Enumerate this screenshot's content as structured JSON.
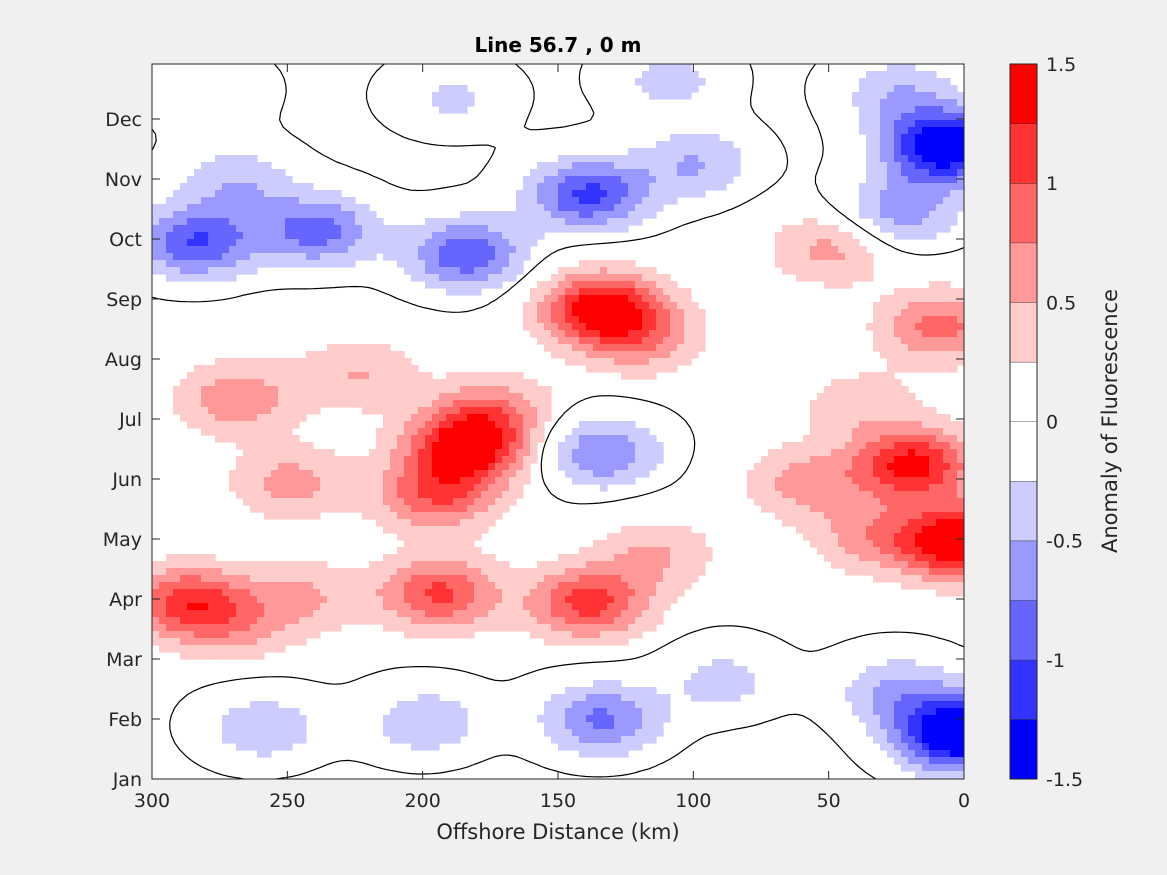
{
  "chart_data": {
    "type": "heatmap",
    "title": "Line 56.7 , 0 m",
    "xlabel": "Offshore Distance (km)",
    "ylabel": "",
    "xlim": [
      300,
      0
    ],
    "x_reversed": true,
    "x_ticks": [
      "300",
      "250",
      "200",
      "150",
      "100",
      "50",
      "0"
    ],
    "y_ticks": [
      "Jan",
      "Feb",
      "Mar",
      "Apr",
      "May",
      "Jun",
      "Jul",
      "Aug",
      "Sep",
      "Oct",
      "Nov",
      "Dec"
    ],
    "colorbar": {
      "label": "Anomaly of Fluorescence",
      "range": [
        -1.5,
        1.5
      ],
      "tick_labels": [
        "1.5",
        "1",
        "0.5",
        "0",
        "-0.5",
        "-1",
        "-1.5"
      ],
      "levels": [
        -1.5,
        -1.25,
        -1.0,
        -0.75,
        -0.5,
        -0.25,
        0,
        0.25,
        0.5,
        0.75,
        1.0,
        1.25,
        1.5
      ],
      "colors": [
        "#0000ff",
        "#3333ff",
        "#6666ff",
        "#9999ff",
        "#ccccff",
        "#ffffff",
        "#ffffff",
        "#ffcccc",
        "#ff9999",
        "#ff6666",
        "#ff3333",
        "#ff0000"
      ]
    },
    "features": [
      {
        "kind": "peak",
        "x": 288,
        "month": 3.0,
        "value": 1.05
      },
      {
        "kind": "peak",
        "x": 245,
        "month": 3.1,
        "value": 0.45
      },
      {
        "kind": "peak",
        "x": 195,
        "month": 3.15,
        "value": 1.0
      },
      {
        "kind": "peak",
        "x": 140,
        "month": 3.0,
        "value": 1.05
      },
      {
        "kind": "peak",
        "x": 115,
        "month": 3.8,
        "value": 0.45
      },
      {
        "kind": "peak",
        "x": 35,
        "month": 4.1,
        "value": 0.55
      },
      {
        "kind": "peak",
        "x": 2,
        "month": 4.0,
        "value": 1.6
      },
      {
        "kind": "peak",
        "x": 20,
        "month": 5.3,
        "value": 1.3
      },
      {
        "kind": "peak",
        "x": 60,
        "month": 5.0,
        "value": 0.55
      },
      {
        "kind": "peak",
        "x": 185,
        "month": 5.6,
        "value": 1.35
      },
      {
        "kind": "peak",
        "x": 196,
        "month": 4.8,
        "value": 0.9
      },
      {
        "kind": "peak",
        "x": 270,
        "month": 6.4,
        "value": 0.65
      },
      {
        "kind": "peak",
        "x": 225,
        "month": 6.8,
        "value": 0.45
      },
      {
        "kind": "peak",
        "x": 175,
        "month": 6.2,
        "value": 0.6
      },
      {
        "kind": "peak",
        "x": 135,
        "month": 7.9,
        "value": 1.4
      },
      {
        "kind": "peak",
        "x": 120,
        "month": 7.4,
        "value": 0.55
      },
      {
        "kind": "peak",
        "x": 10,
        "month": 7.6,
        "value": 0.8
      },
      {
        "kind": "peak",
        "x": 40,
        "month": 6.3,
        "value": 0.35
      },
      {
        "kind": "peak",
        "x": 250,
        "month": 5.0,
        "value": 0.55
      },
      {
        "kind": "peak",
        "x": 270,
        "month": 2.6,
        "value": 0.4
      },
      {
        "kind": "peak",
        "x": 50,
        "month": 8.9,
        "value": 0.55
      },
      {
        "kind": "trough",
        "x": 135,
        "month": 5.5,
        "value": -0.8
      },
      {
        "kind": "trough",
        "x": 285,
        "month": 9.0,
        "value": -1.05
      },
      {
        "kind": "trough",
        "x": 240,
        "month": 9.2,
        "value": -0.9
      },
      {
        "kind": "trough",
        "x": 185,
        "month": 8.8,
        "value": -1.0
      },
      {
        "kind": "trough",
        "x": 140,
        "month": 9.8,
        "value": -1.1
      },
      {
        "kind": "trough",
        "x": 100,
        "month": 10.3,
        "value": -0.55
      },
      {
        "kind": "trough",
        "x": 270,
        "month": 10.0,
        "value": -0.5
      },
      {
        "kind": "trough",
        "x": 8,
        "month": 10.6,
        "value": -1.65
      },
      {
        "kind": "trough",
        "x": 25,
        "month": 9.5,
        "value": -0.7
      },
      {
        "kind": "trough",
        "x": 25,
        "month": 11.5,
        "value": -0.5
      },
      {
        "kind": "trough",
        "x": 3,
        "month": 0.8,
        "value": -1.75
      },
      {
        "kind": "trough",
        "x": 25,
        "month": 1.5,
        "value": -0.6
      },
      {
        "kind": "trough",
        "x": 135,
        "month": 1.05,
        "value": -0.85
      },
      {
        "kind": "trough",
        "x": 200,
        "month": 1.0,
        "value": -0.5
      },
      {
        "kind": "trough",
        "x": 260,
        "month": 0.9,
        "value": -0.5
      },
      {
        "kind": "trough",
        "x": 90,
        "month": 1.7,
        "value": -0.4
      },
      {
        "kind": "trough",
        "x": 110,
        "month": 11.7,
        "value": -0.4
      },
      {
        "kind": "trough",
        "x": 280,
        "month": 11.5,
        "value": -0.3
      },
      {
        "kind": "trough",
        "x": 190,
        "month": 11.4,
        "value": -0.35
      }
    ]
  }
}
